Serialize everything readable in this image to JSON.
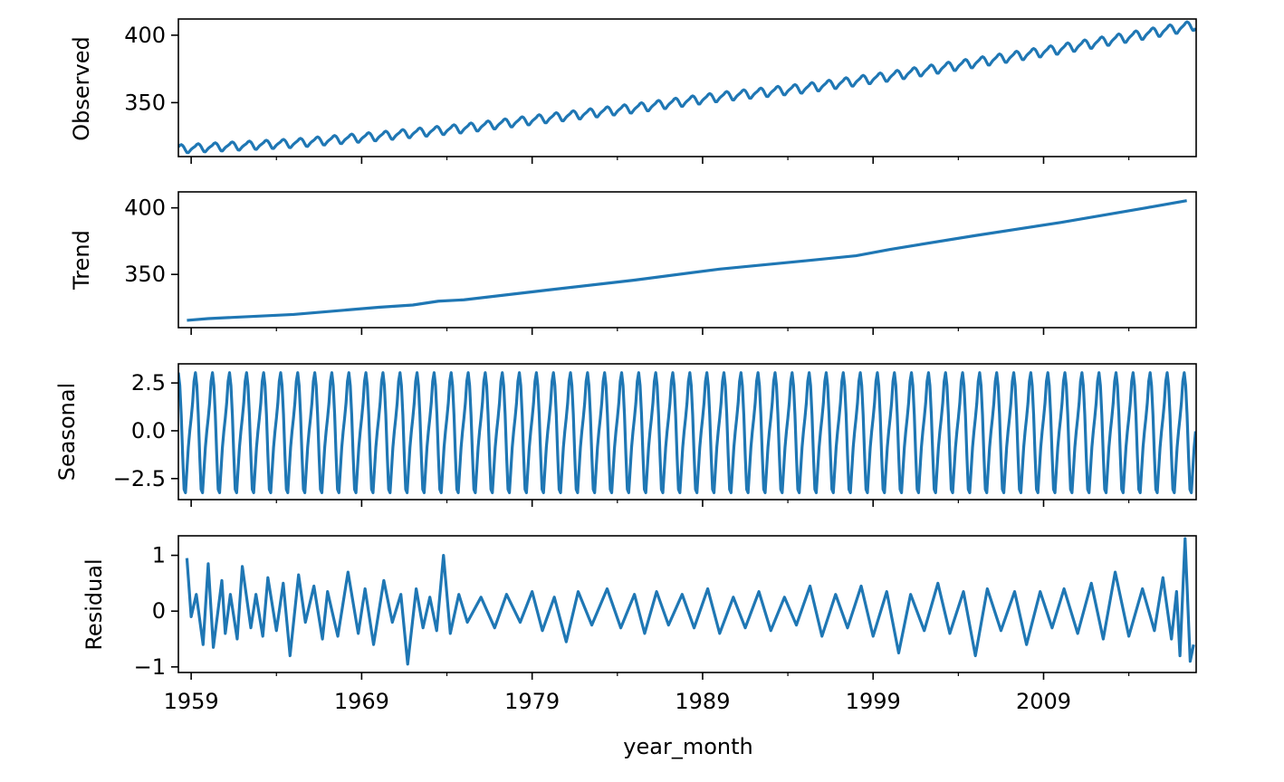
{
  "chart_data": [
    {
      "type": "line",
      "panel": "observed",
      "ylabel": "Observed",
      "y_ticks": [
        {
          "value": 350,
          "label": "350"
        },
        {
          "value": 400,
          "label": "400"
        }
      ],
      "ylim": [
        310,
        412
      ],
      "series": [
        {
          "color": "#1f77b4",
          "x": [
            1958.25,
            1960,
            1965,
            1970,
            1975,
            1980,
            1985,
            1990,
            1995,
            2000,
            2005,
            2010,
            2015,
            2017.9
          ],
          "values": [
            315.7,
            316.9,
            320.0,
            325.2,
            331.1,
            338.7,
            346.0,
            354.4,
            360.8,
            369.7,
            379.8,
            389.9,
            401.0,
            407.5
          ]
        }
      ]
    },
    {
      "type": "line",
      "panel": "trend",
      "ylabel": "Trend",
      "y_ticks": [
        {
          "value": 350,
          "label": "350"
        },
        {
          "value": 400,
          "label": "400"
        }
      ],
      "ylim": [
        310,
        412
      ],
      "series": [
        {
          "color": "#1f77b4",
          "x": [
            1958.75,
            1960,
            1965,
            1970,
            1972,
            1973.5,
            1975,
            1980,
            1985,
            1990,
            1995,
            1998,
            2000,
            2005,
            2010,
            2015,
            2017.4
          ],
          "values": [
            315.5,
            316.8,
            319.9,
            325.3,
            327.0,
            329.9,
            330.9,
            338.4,
            345.7,
            354.0,
            360.2,
            364.0,
            368.8,
            379.2,
            389.0,
            400.0,
            405.4
          ]
        }
      ]
    },
    {
      "type": "line",
      "panel": "seasonal",
      "ylabel": "Seasonal",
      "y_ticks": [
        {
          "value": -2.5,
          "label": "−2.5"
        },
        {
          "value": 0,
          "label": "0.0"
        },
        {
          "value": 2.5,
          "label": "2.5"
        }
      ],
      "ylim": [
        -3.6,
        3.5
      ],
      "monthly_pattern": [
        -0.03,
        0.66,
        1.45,
        2.58,
        3.04,
        2.36,
        0.83,
        -1.27,
        -3.06,
        -3.24,
        -2.05,
        -0.86
      ],
      "series": [
        {
          "color": "#1f77b4",
          "x_start": 1958.25,
          "x_end": 2017.95
        }
      ]
    },
    {
      "type": "line",
      "panel": "residual",
      "ylabel": "Residual",
      "xlabel": "year_month",
      "y_ticks": [
        {
          "value": -1,
          "label": "−1"
        },
        {
          "value": 0,
          "label": "0"
        },
        {
          "value": 1,
          "label": "1"
        }
      ],
      "ylim": [
        -1.1,
        1.35
      ],
      "x_ticks": [
        {
          "value": 1959,
          "label": "1959"
        },
        {
          "value": 1969,
          "label": "1969"
        },
        {
          "value": 1979,
          "label": "1979"
        },
        {
          "value": 1989,
          "label": "1989"
        },
        {
          "value": 1999,
          "label": "1999"
        },
        {
          "value": 2009,
          "label": "2009"
        }
      ],
      "series": [
        {
          "color": "#1f77b4",
          "x": [
            1958.75,
            1959.0,
            1959.3,
            1959.7,
            1960.0,
            1960.3,
            1960.8,
            1961.0,
            1961.3,
            1961.7,
            1962.0,
            1962.5,
            1962.8,
            1963.2,
            1963.5,
            1964.0,
            1964.4,
            1964.8,
            1965.3,
            1965.7,
            1966.2,
            1966.7,
            1967.0,
            1967.6,
            1968.2,
            1968.8,
            1969.2,
            1969.7,
            1970.3,
            1970.8,
            1971.3,
            1971.7,
            1972.2,
            1972.6,
            1973.0,
            1973.4,
            1973.8,
            1974.2,
            1974.7,
            1975.2,
            1976.0,
            1976.8,
            1977.5,
            1978.3,
            1979.0,
            1979.6,
            1980.3,
            1981.0,
            1981.7,
            1982.5,
            1983.4,
            1984.2,
            1985.0,
            1985.6,
            1986.3,
            1987.0,
            1987.8,
            1988.5,
            1989.3,
            1990.0,
            1990.8,
            1991.5,
            1992.3,
            1993.0,
            1993.8,
            1994.5,
            1995.3,
            1996.0,
            1996.8,
            1997.5,
            1998.3,
            1999.0,
            1999.8,
            2000.5,
            2001.2,
            2002.0,
            2002.8,
            2003.5,
            2004.3,
            2005.0,
            2005.7,
            2006.5,
            2007.3,
            2008.0,
            2008.8,
            2009.5,
            2010.2,
            2011.0,
            2011.8,
            2012.5,
            2013.2,
            2014.0,
            2014.8,
            2015.5,
            2016.0,
            2016.5,
            2016.8,
            2017.0,
            2017.3,
            2017.6,
            2017.8
          ],
          "values": [
            0.95,
            -0.1,
            0.3,
            -0.6,
            0.85,
            -0.65,
            0.55,
            -0.4,
            0.3,
            -0.5,
            0.8,
            -0.3,
            0.3,
            -0.45,
            0.6,
            -0.35,
            0.5,
            -0.8,
            0.65,
            -0.2,
            0.45,
            -0.5,
            0.35,
            -0.45,
            0.7,
            -0.4,
            0.4,
            -0.6,
            0.55,
            -0.2,
            0.3,
            -0.95,
            0.4,
            -0.3,
            0.25,
            -0.35,
            1.0,
            -0.4,
            0.3,
            -0.2,
            0.25,
            -0.3,
            0.3,
            -0.2,
            0.35,
            -0.35,
            0.25,
            -0.55,
            0.35,
            -0.25,
            0.4,
            -0.3,
            0.3,
            -0.4,
            0.35,
            -0.25,
            0.3,
            -0.3,
            0.4,
            -0.4,
            0.25,
            -0.3,
            0.35,
            -0.35,
            0.25,
            -0.25,
            0.45,
            -0.45,
            0.3,
            -0.3,
            0.45,
            -0.45,
            0.35,
            -0.75,
            0.3,
            -0.35,
            0.5,
            -0.4,
            0.35,
            -0.8,
            0.4,
            -0.35,
            0.35,
            -0.6,
            0.35,
            -0.3,
            0.4,
            -0.4,
            0.5,
            -0.5,
            0.7,
            -0.45,
            0.4,
            -0.35,
            0.6,
            -0.5,
            0.35,
            -0.8,
            1.3,
            -0.9,
            -0.6
          ]
        }
      ]
    }
  ]
}
